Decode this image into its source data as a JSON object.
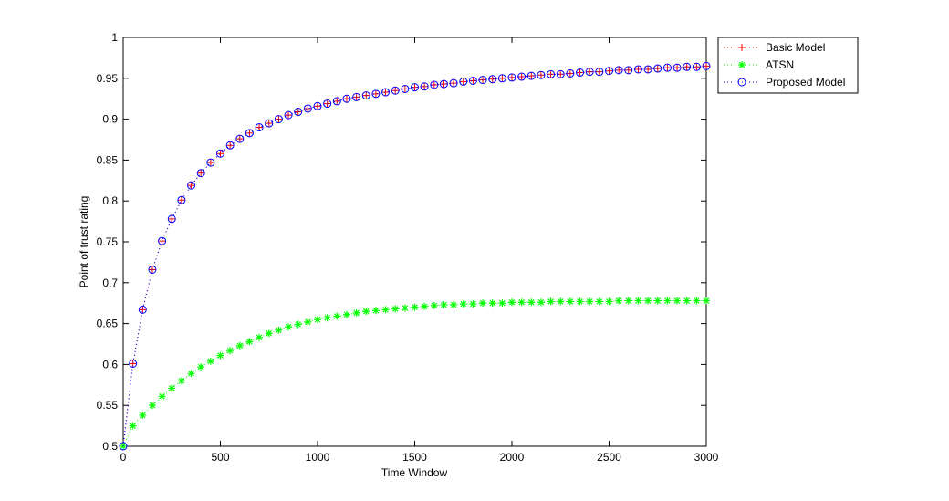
{
  "chart_data": {
    "type": "line",
    "title": "",
    "xlabel": "Time Window",
    "ylabel": "Point of trust rating",
    "xlim": [
      0,
      3000
    ],
    "ylim": [
      0.5,
      1
    ],
    "xticks": [
      0,
      500,
      1000,
      1500,
      2000,
      2500,
      3000
    ],
    "yticks": [
      0.5,
      0.55,
      0.6,
      0.65,
      0.7,
      0.75,
      0.8,
      0.85,
      0.9,
      0.95,
      1
    ],
    "grid": false,
    "legend_position": "outside-top-right",
    "x": [
      0,
      50,
      100,
      150,
      200,
      250,
      300,
      350,
      400,
      450,
      500,
      550,
      600,
      650,
      700,
      750,
      800,
      850,
      900,
      950,
      1000,
      1050,
      1100,
      1150,
      1200,
      1250,
      1300,
      1350,
      1400,
      1450,
      1500,
      1550,
      1600,
      1650,
      1700,
      1750,
      1800,
      1850,
      1900,
      1950,
      2000,
      2050,
      2100,
      2150,
      2200,
      2250,
      2300,
      2350,
      2400,
      2450,
      2500,
      2550,
      2600,
      2650,
      2700,
      2750,
      2800,
      2850,
      2900,
      2950,
      3000
    ],
    "series": [
      {
        "name": "Basic Model",
        "color": "#ff0000",
        "marker": "plus",
        "values": [
          0.5,
          0.601,
          0.667,
          0.716,
          0.751,
          0.778,
          0.801,
          0.819,
          0.834,
          0.847,
          0.858,
          0.868,
          0.876,
          0.883,
          0.89,
          0.895,
          0.9,
          0.905,
          0.909,
          0.913,
          0.916,
          0.919,
          0.922,
          0.925,
          0.927,
          0.929,
          0.931,
          0.933,
          0.935,
          0.937,
          0.939,
          0.94,
          0.942,
          0.943,
          0.944,
          0.946,
          0.947,
          0.948,
          0.949,
          0.95,
          0.951,
          0.952,
          0.953,
          0.954,
          0.955,
          0.955,
          0.956,
          0.957,
          0.958,
          0.958,
          0.959,
          0.96,
          0.96,
          0.961,
          0.961,
          0.962,
          0.963,
          0.963,
          0.964,
          0.964,
          0.965
        ]
      },
      {
        "name": "ATSN",
        "color": "#00ff00",
        "marker": "asterisk",
        "values": [
          0.5,
          0.525,
          0.538,
          0.55,
          0.561,
          0.571,
          0.58,
          0.589,
          0.597,
          0.604,
          0.611,
          0.617,
          0.623,
          0.628,
          0.633,
          0.638,
          0.642,
          0.646,
          0.649,
          0.652,
          0.655,
          0.657,
          0.659,
          0.661,
          0.663,
          0.665,
          0.666,
          0.667,
          0.668,
          0.669,
          0.67,
          0.671,
          0.672,
          0.673,
          0.673,
          0.674,
          0.674,
          0.675,
          0.675,
          0.675,
          0.676,
          0.676,
          0.676,
          0.676,
          0.677,
          0.677,
          0.677,
          0.677,
          0.677,
          0.677,
          0.677,
          0.678,
          0.678,
          0.678,
          0.678,
          0.678,
          0.678,
          0.678,
          0.678,
          0.678,
          0.678
        ]
      },
      {
        "name": "Proposed Model",
        "color": "#0000ff",
        "marker": "circle",
        "values": [
          0.5,
          0.601,
          0.667,
          0.716,
          0.751,
          0.778,
          0.801,
          0.819,
          0.834,
          0.847,
          0.858,
          0.868,
          0.876,
          0.883,
          0.89,
          0.895,
          0.9,
          0.905,
          0.909,
          0.913,
          0.916,
          0.919,
          0.922,
          0.925,
          0.927,
          0.929,
          0.931,
          0.933,
          0.935,
          0.937,
          0.939,
          0.94,
          0.942,
          0.943,
          0.944,
          0.946,
          0.947,
          0.948,
          0.949,
          0.95,
          0.951,
          0.952,
          0.953,
          0.954,
          0.955,
          0.955,
          0.956,
          0.957,
          0.958,
          0.958,
          0.959,
          0.96,
          0.96,
          0.961,
          0.961,
          0.962,
          0.963,
          0.963,
          0.964,
          0.964,
          0.965
        ]
      }
    ]
  }
}
